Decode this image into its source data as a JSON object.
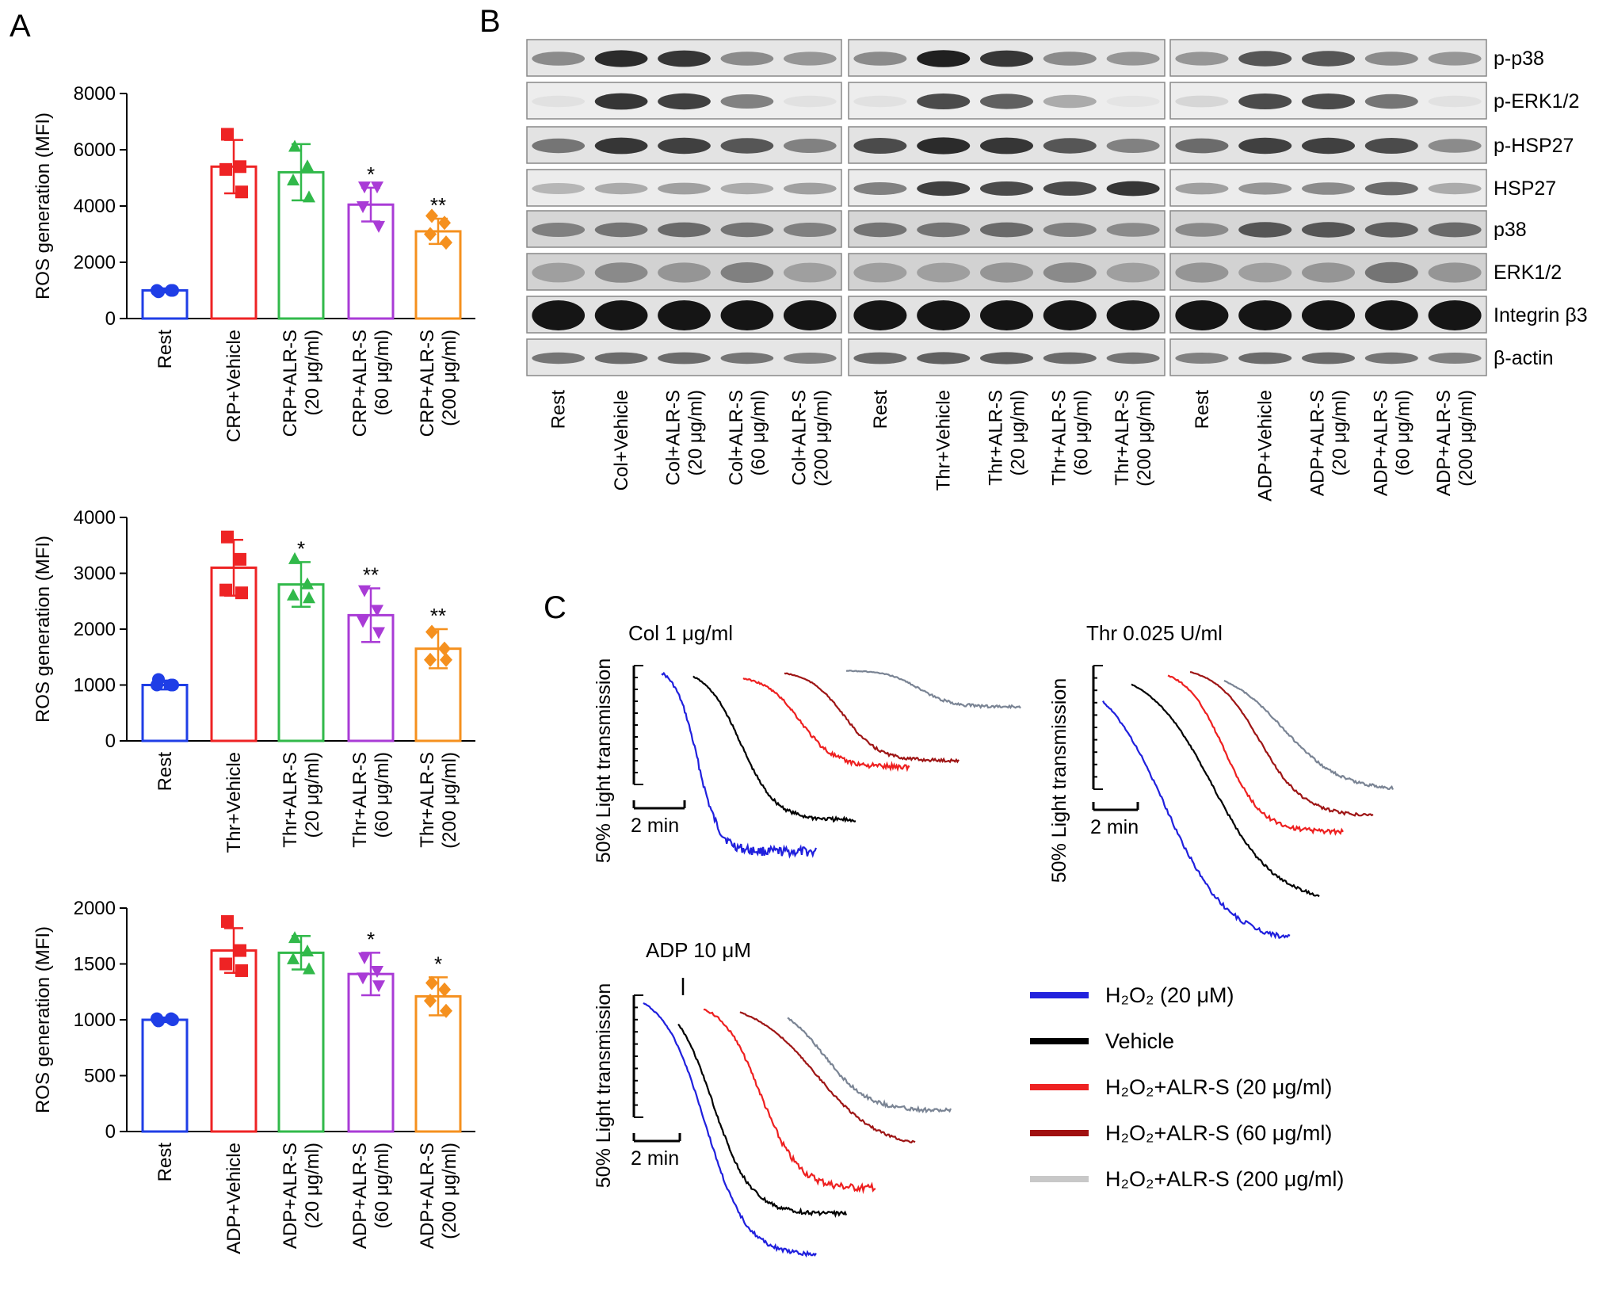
{
  "panel_labels": {
    "a": "A",
    "b": "B",
    "c": "C"
  },
  "panel_a": {
    "charts": [
      {
        "type": "bar",
        "ylabel": "ROS generation (MFI)",
        "ylim": [
          0,
          8000
        ],
        "yticks": [
          "0",
          "2000",
          "4000",
          "6000",
          "8000"
        ],
        "categories": [
          [
            "Rest"
          ],
          [
            "CRP+Vehicle"
          ],
          [
            "CRP+ALR-S",
            "(20 μg/ml)"
          ],
          [
            "CRP+ALR-S",
            "(60 μg/ml)"
          ],
          [
            "CRP+ALR-S",
            "(200 μg/ml)"
          ]
        ],
        "values": [
          1000,
          5400,
          5200,
          4050,
          3100
        ],
        "errors": [
          70,
          950,
          1000,
          600,
          450
        ],
        "points": [
          [
            950,
            1000,
            1000,
            1000
          ],
          [
            6550,
            5400,
            5300,
            4500
          ],
          [
            6100,
            5400,
            4900,
            4300
          ],
          [
            4700,
            4700,
            4000,
            3300
          ],
          [
            3650,
            3400,
            3000,
            2700
          ]
        ],
        "significance": [
          "",
          "",
          "",
          "*",
          "**"
        ],
        "colors": [
          "#1f3ee6",
          "#ee2324",
          "#31b94a",
          "#a93bd6",
          "#f5901e"
        ],
        "markers": [
          "circle",
          "square",
          "triangle",
          "triangle-down",
          "diamond"
        ]
      },
      {
        "type": "bar",
        "ylabel": "ROS generation (MFI)",
        "ylim": [
          0,
          4000
        ],
        "yticks": [
          "0",
          "1000",
          "2000",
          "3000",
          "4000"
        ],
        "categories": [
          [
            "Rest"
          ],
          [
            "Thr+Vehicle"
          ],
          [
            "Thr+ALR-S",
            "(20 μg/ml)"
          ],
          [
            "Thr+ALR-S",
            "(60 μg/ml)"
          ],
          [
            "Thr+ALR-S",
            "(200 μg/ml)"
          ]
        ],
        "values": [
          1000,
          3100,
          2800,
          2250,
          1650
        ],
        "errors": [
          80,
          500,
          400,
          480,
          350
        ],
        "points": [
          [
            1100,
            1000,
            1000,
            1000
          ],
          [
            3650,
            3250,
            2700,
            2650
          ],
          [
            3250,
            2800,
            2600,
            2550
          ],
          [
            2700,
            2350,
            2150,
            1950
          ],
          [
            1950,
            1650,
            1450,
            1450
          ]
        ],
        "significance": [
          "",
          "",
          "*",
          "**",
          "**"
        ],
        "colors": [
          "#1f3ee6",
          "#ee2324",
          "#31b94a",
          "#a93bd6",
          "#f5901e"
        ],
        "markers": [
          "circle",
          "square",
          "triangle",
          "triangle-down",
          "diamond"
        ]
      },
      {
        "type": "bar",
        "ylabel": "ROS generation (MFI)",
        "ylim": [
          0,
          2000
        ],
        "yticks": [
          "0",
          "500",
          "1000",
          "1500",
          "2000"
        ],
        "categories": [
          [
            "Rest"
          ],
          [
            "ADP+Vehicle"
          ],
          [
            "ADP+ALR-S",
            "(20 μg/ml)"
          ],
          [
            "ADP+ALR-S",
            "(60 μg/ml)"
          ],
          [
            "ADP+ALR-S",
            "(200 μg/ml)"
          ]
        ],
        "values": [
          1000,
          1620,
          1600,
          1410,
          1210
        ],
        "errors": [
          20,
          200,
          150,
          190,
          170
        ],
        "points": [
          [
            990,
            1010,
            1010,
            1000
          ],
          [
            1880,
            1620,
            1500,
            1440
          ],
          [
            1730,
            1610,
            1540,
            1450
          ],
          [
            1560,
            1440,
            1380,
            1310
          ],
          [
            1330,
            1270,
            1170,
            1080
          ]
        ],
        "significance": [
          "",
          "",
          "",
          "*",
          "*"
        ],
        "colors": [
          "#1f3ee6",
          "#ee2324",
          "#31b94a",
          "#a93bd6",
          "#f5901e"
        ],
        "markers": [
          "circle",
          "square",
          "triangle",
          "triangle-down",
          "diamond"
        ]
      }
    ]
  },
  "panel_b": {
    "row_labels": [
      "p-p38",
      "p-ERK1/2",
      "p-HSP27",
      "HSP27",
      "p38",
      "ERK1/2",
      "Integrin β3",
      "β-actin"
    ],
    "lane_groups": [
      {
        "lanes": [
          [
            "Rest"
          ],
          [
            "Col+Vehicle"
          ],
          [
            "Col+ALR-S",
            "(20 μg/ml)"
          ],
          [
            "Col+ALR-S",
            "(60 μg/ml)"
          ],
          [
            "Col+ALR-S",
            "(200 μg/ml)"
          ]
        ]
      },
      {
        "lanes": [
          [
            "Rest"
          ],
          [
            "Thr+Vehicle"
          ],
          [
            "Thr+ALR-S",
            "(20 μg/ml)"
          ],
          [
            "Thr+ALR-S",
            "(60 μg/ml)"
          ],
          [
            "Thr+ALR-S",
            "(200 μg/ml)"
          ]
        ]
      },
      {
        "lanes": [
          [
            "Rest"
          ],
          [
            "ADP+Vehicle"
          ],
          [
            "ADP+ALR-S",
            "(20 μg/ml)"
          ],
          [
            "ADP+ALR-S",
            "(60 μg/ml)"
          ],
          [
            "ADP+ALR-S",
            "(200 μg/ml)"
          ]
        ]
      }
    ]
  },
  "panel_c": {
    "ylabel": "50% Light transmission",
    "scale_bar_label": "2 min",
    "traces": [
      {
        "title": "Col 1 μg/ml"
      },
      {
        "title": "Thr 0.025 U/ml"
      },
      {
        "title": "ADP 10 μM"
      }
    ],
    "legend": [
      {
        "label": "H₂O₂ (20 μM)",
        "color": "#2222dd"
      },
      {
        "label": "Vehicle",
        "color": "#000000"
      },
      {
        "label": "H₂O₂+ALR-S (20 μg/ml)",
        "color": "#ee2222"
      },
      {
        "label": "H₂O₂+ALR-S (60 μg/ml)",
        "color": "#a01010"
      },
      {
        "label": "H₂O₂+ALR-S (200 μg/ml)",
        "color": "#c8c8c8"
      }
    ]
  }
}
